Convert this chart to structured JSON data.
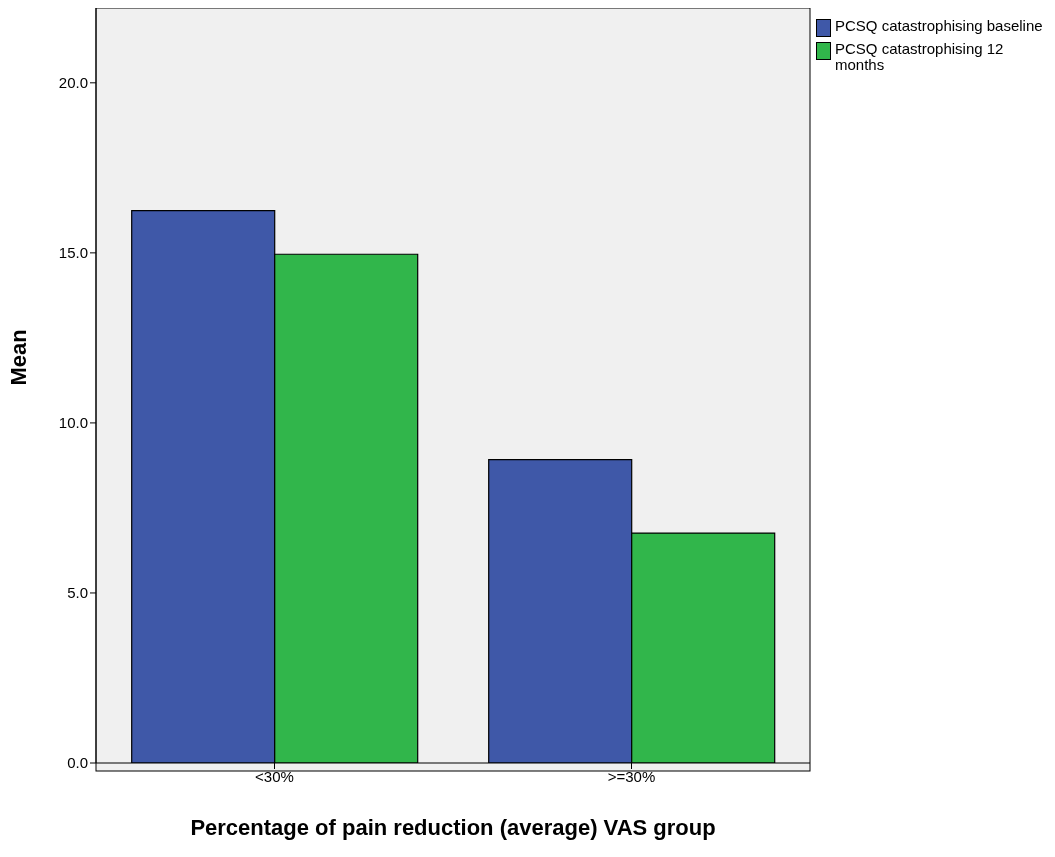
{
  "chart_data": {
    "type": "bar",
    "xlabel": "Percentage of pain reduction (average) VAS group",
    "ylabel": "Mean",
    "categories": [
      "<30%",
      ">=30%"
    ],
    "series": [
      {
        "name": "PCSQ catastrophising baseline",
        "color": "#3f58a8",
        "values": [
          16.24,
          8.92
        ]
      },
      {
        "name": "PCSQ catastrophising 12 months",
        "color": "#31b64b",
        "values": [
          14.96,
          6.76
        ]
      }
    ],
    "ylim": [
      0,
      22.2
    ],
    "yticks": [
      {
        "value": 0,
        "label": "0.0"
      },
      {
        "value": 5,
        "label": "5.0"
      },
      {
        "value": 10,
        "label": "10.0"
      },
      {
        "value": 15,
        "label": "15.0"
      },
      {
        "value": 20,
        "label": "20.0"
      }
    ],
    "grid": false,
    "legend": "top right"
  }
}
